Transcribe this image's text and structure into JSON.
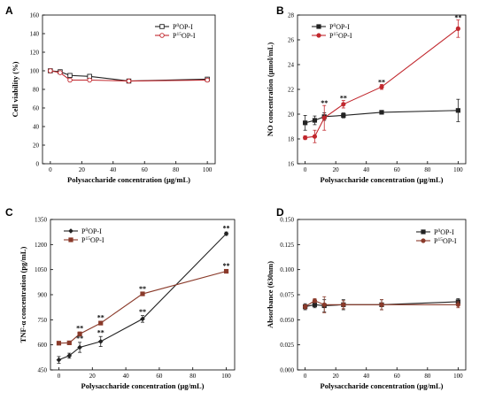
{
  "x_label": "Polysaccharide concentration (μg/mL)",
  "legend": {
    "s1_prefix": "P",
    "s1_sup": "0",
    "s1_suffix": "OP-I",
    "s2_prefix": "P",
    "s2_sup": "15",
    "s2_suffix": "OP-I"
  },
  "colors": {
    "s1": "#222222",
    "s2": "#c1272d",
    "s2_dark": "#8a3a2a"
  },
  "chart_data": [
    {
      "type": "line",
      "panel": "A",
      "ylabel": "Cell viability (%)",
      "xlabel": "Polysaccharide concentration (μg/mL)",
      "xlim": [
        -5,
        105
      ],
      "ylim": [
        0,
        160
      ],
      "xticks": [
        0,
        20,
        40,
        60,
        80,
        100
      ],
      "yticks": [
        0,
        20,
        40,
        60,
        80,
        100,
        120,
        140,
        160
      ],
      "x": [
        0,
        6.25,
        12.5,
        25,
        50,
        100
      ],
      "series": [
        {
          "name": "P0OP-I",
          "values": [
            100,
            99,
            95,
            94,
            89,
            91
          ],
          "err": [
            1,
            1,
            1,
            1,
            1,
            1
          ],
          "marker": "hollow-square"
        },
        {
          "name": "P15OP-I",
          "values": [
            100,
            98,
            90,
            90,
            89,
            90
          ],
          "err": [
            1,
            1,
            1,
            1,
            1,
            1
          ],
          "marker": "hollow-circle"
        }
      ],
      "legend_position": "top-right"
    },
    {
      "type": "line",
      "panel": "B",
      "ylabel": "NO concentration (μmol/mL)",
      "xlabel": "Polysaccharide concentration (μg/mL)",
      "xlim": [
        -5,
        105
      ],
      "ylim": [
        16,
        28
      ],
      "xticks": [
        0,
        20,
        40,
        60,
        80,
        100
      ],
      "yticks": [
        16,
        18,
        20,
        22,
        24,
        26,
        28
      ],
      "x": [
        0,
        6.25,
        12.5,
        25,
        50,
        100
      ],
      "series": [
        {
          "name": "P0OP-I",
          "values": [
            19.3,
            19.5,
            19.8,
            19.9,
            20.15,
            20.3
          ],
          "err": [
            0.6,
            0.35,
            0.3,
            0.2,
            0.1,
            0.9
          ],
          "marker": "square"
        },
        {
          "name": "P15OP-I",
          "values": [
            18.1,
            18.2,
            19.7,
            20.8,
            22.2,
            26.9
          ],
          "err": [
            0.15,
            0.5,
            1.0,
            0.3,
            0.2,
            0.7
          ],
          "marker": "circle"
        }
      ],
      "significance": [
        {
          "x": 12.5,
          "y": 20.7,
          "text": "**"
        },
        {
          "x": 25,
          "y": 21.1,
          "text": "**"
        },
        {
          "x": 50,
          "y": 22.4,
          "text": "**"
        },
        {
          "x": 100,
          "y": 27.6,
          "text": "**"
        }
      ],
      "legend_position": "top-left"
    },
    {
      "type": "line",
      "panel": "C",
      "ylabel": "TNF-α concentration (pg/mL)",
      "xlabel": "Polysaccharide concentration (μg/mL)",
      "xlim": [
        -5,
        105
      ],
      "ylim": [
        450,
        1350
      ],
      "xticks": [
        0,
        20,
        40,
        60,
        80,
        100
      ],
      "yticks": [
        450,
        600,
        750,
        900,
        1050,
        1200,
        1350
      ],
      "x": [
        0,
        6.25,
        12.5,
        25,
        50,
        100
      ],
      "series": [
        {
          "name": "P0OP-I",
          "values": [
            510,
            535,
            585,
            620,
            755,
            1265
          ],
          "err": [
            20,
            15,
            30,
            30,
            20,
            10
          ],
          "marker": "diamond"
        },
        {
          "name": "P15OP-I",
          "values": [
            610,
            612,
            665,
            730,
            905,
            1040
          ],
          "err": [
            5,
            5,
            12,
            10,
            10,
            8
          ],
          "marker": "square"
        }
      ],
      "significance": [
        {
          "x": 12.5,
          "y": 686,
          "text": "**"
        },
        {
          "x": 12.5,
          "y": 626,
          "text": "**"
        },
        {
          "x": 25,
          "y": 748,
          "text": "**"
        },
        {
          "x": 25,
          "y": 660,
          "text": "**"
        },
        {
          "x": 50,
          "y": 922,
          "text": "**"
        },
        {
          "x": 50,
          "y": 783,
          "text": "**"
        },
        {
          "x": 100,
          "y": 1285,
          "text": "**"
        },
        {
          "x": 100,
          "y": 1058,
          "text": "**"
        }
      ],
      "legend_position": "top-left"
    },
    {
      "type": "line",
      "panel": "D",
      "ylabel": "Absorbance (630nm)",
      "xlabel": "Polysaccharide concentration (μg/mL)",
      "xlim": [
        -5,
        105
      ],
      "ylim": [
        0,
        0.15
      ],
      "xticks": [
        0,
        20,
        40,
        60,
        80,
        100
      ],
      "yticks": [
        "0.000",
        "0.025",
        "0.050",
        "0.075",
        "0.100",
        "0.125",
        "0.150"
      ],
      "x": [
        0,
        6.25,
        12.5,
        25,
        50,
        100
      ],
      "series": [
        {
          "name": "P0OP-I",
          "values": [
            0.063,
            0.065,
            0.064,
            0.065,
            0.065,
            0.068
          ],
          "err": [
            0.003,
            0.003,
            0.006,
            0.005,
            0.005,
            0.003
          ],
          "marker": "square"
        },
        {
          "name": "P15OP-I",
          "values": [
            0.063,
            0.069,
            0.065,
            0.065,
            0.065,
            0.065
          ],
          "err": [
            0.002,
            0.002,
            0.008,
            0.004,
            0.005,
            0.003
          ],
          "marker": "circle"
        }
      ],
      "legend_position": "top-right"
    }
  ]
}
